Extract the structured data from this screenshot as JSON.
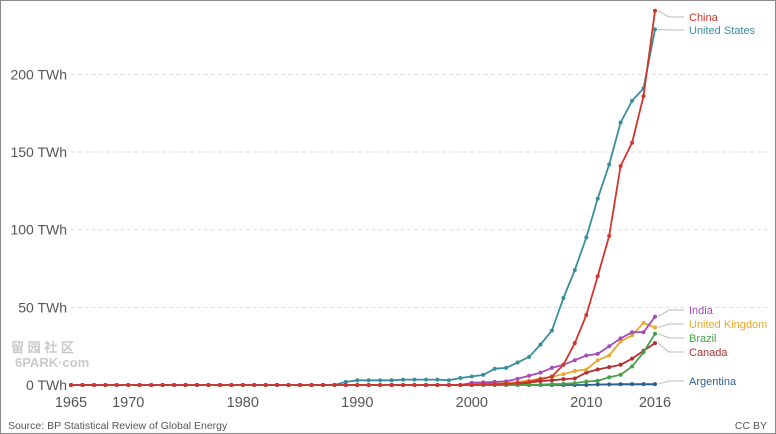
{
  "watermark": {
    "line1": "留 园 社 区",
    "line2": "6PARK·com"
  },
  "footer": {
    "source": "Source: BP Statistical Review of Global Energy",
    "license": "CC BY"
  },
  "chart_data": {
    "type": "line",
    "title": "",
    "xlabel": "",
    "ylabel": "",
    "x_ticks": [
      "1965",
      "1970",
      "1980",
      "1990",
      "2000",
      "2010",
      "2016"
    ],
    "y_ticks": [
      "0 TWh",
      "50 TWh",
      "100 TWh",
      "150 TWh",
      "200 TWh"
    ],
    "y_tick_values": [
      0,
      50,
      100,
      150,
      200
    ],
    "xlim": [
      1965,
      2016
    ],
    "ylim": [
      0,
      245
    ],
    "grid": "horizontal dashed",
    "legend": "labels at right end of each line",
    "x": [
      1965,
      1966,
      1967,
      1968,
      1969,
      1970,
      1971,
      1972,
      1973,
      1974,
      1975,
      1976,
      1977,
      1978,
      1979,
      1980,
      1981,
      1982,
      1983,
      1984,
      1985,
      1986,
      1987,
      1988,
      1989,
      1990,
      1991,
      1992,
      1993,
      1994,
      1995,
      1996,
      1997,
      1998,
      1999,
      2000,
      2001,
      2002,
      2003,
      2004,
      2005,
      2006,
      2007,
      2008,
      2009,
      2010,
      2011,
      2012,
      2013,
      2014,
      2015,
      2016
    ],
    "series": [
      {
        "name": "China",
        "color": "#d0352e",
        "values": [
          0,
          0,
          0,
          0,
          0,
          0,
          0,
          0,
          0,
          0,
          0,
          0,
          0,
          0,
          0,
          0,
          0,
          0,
          0,
          0,
          0,
          0,
          0,
          0,
          0,
          0,
          0,
          0,
          0,
          0,
          0,
          0,
          0,
          0,
          0,
          0,
          0.5,
          0.6,
          0.8,
          1.3,
          2,
          3.7,
          5.5,
          13,
          27,
          45,
          70,
          96,
          141,
          156,
          186,
          241
        ]
      },
      {
        "name": "United States",
        "color": "#3a8e9c",
        "values": [
          0,
          0,
          0,
          0,
          0,
          0,
          0,
          0,
          0,
          0,
          0,
          0,
          0,
          0,
          0,
          0,
          0,
          0,
          0,
          0,
          0,
          0,
          0,
          0,
          2,
          3,
          3,
          3,
          3,
          3.5,
          3.5,
          3.5,
          3.5,
          3,
          4.5,
          5.5,
          6.5,
          10.5,
          11,
          14.5,
          18,
          26,
          35,
          56,
          74,
          95,
          120,
          142,
          169,
          183,
          191,
          229
        ]
      },
      {
        "name": "India",
        "color": "#a34db8",
        "values": [
          0,
          0,
          0,
          0,
          0,
          0,
          0,
          0,
          0,
          0,
          0,
          0,
          0,
          0,
          0,
          0,
          0,
          0,
          0,
          0,
          0,
          0,
          0,
          0,
          0,
          0,
          0,
          0,
          0,
          0,
          0,
          0,
          0,
          0,
          0,
          1.5,
          1.7,
          2,
          2.3,
          4,
          6,
          8,
          11,
          13,
          16,
          19,
          20,
          25,
          30,
          34,
          34,
          44
        ]
      },
      {
        "name": "United Kingdom",
        "color": "#e8a933",
        "values": [
          0,
          0,
          0,
          0,
          0,
          0,
          0,
          0,
          0,
          0,
          0,
          0,
          0,
          0,
          0,
          0,
          0,
          0,
          0,
          0,
          0,
          0,
          0,
          0,
          0,
          0,
          0,
          0,
          0,
          0,
          0,
          0,
          0,
          0,
          0,
          1,
          1,
          1.2,
          1.3,
          1.9,
          2.9,
          4.2,
          5.2,
          7,
          9,
          10,
          16,
          19,
          28,
          32,
          40,
          37
        ]
      },
      {
        "name": "Brazil",
        "color": "#4aa04a",
        "values": [
          0,
          0,
          0,
          0,
          0,
          0,
          0,
          0,
          0,
          0,
          0,
          0,
          0,
          0,
          0,
          0,
          0,
          0,
          0,
          0,
          0,
          0,
          0,
          0,
          0,
          0,
          0,
          0,
          0,
          0,
          0,
          0,
          0,
          0,
          0,
          0,
          0,
          0,
          0,
          0,
          0,
          0.2,
          0.5,
          0.7,
          1.2,
          2.2,
          2.7,
          5,
          6.6,
          12,
          21,
          33
        ]
      },
      {
        "name": "Canada",
        "color": "#b03030",
        "values": [
          0,
          0,
          0,
          0,
          0,
          0,
          0,
          0,
          0,
          0,
          0,
          0,
          0,
          0,
          0,
          0,
          0,
          0,
          0,
          0,
          0,
          0,
          0,
          0,
          0,
          0,
          0,
          0,
          0,
          0,
          0,
          0,
          0,
          0,
          0,
          0,
          0,
          0,
          0,
          0.5,
          1.5,
          2.5,
          3,
          3.8,
          4.2,
          8,
          10,
          11.5,
          13,
          17,
          22,
          27
        ]
      },
      {
        "name": "Argentina",
        "color": "#2d5f8f",
        "values": [
          0,
          0,
          0,
          0,
          0,
          0,
          0,
          0,
          0,
          0,
          0,
          0,
          0,
          0,
          0,
          0,
          0,
          0,
          0,
          0,
          0,
          0,
          0,
          0,
          0,
          0,
          0,
          0,
          0,
          0,
          0,
          0,
          0,
          0,
          0,
          0,
          0,
          0,
          0,
          0,
          0,
          0,
          0,
          0,
          0,
          0,
          0.3,
          0.4,
          0.5,
          0.6,
          0.6,
          0.6
        ]
      }
    ]
  }
}
